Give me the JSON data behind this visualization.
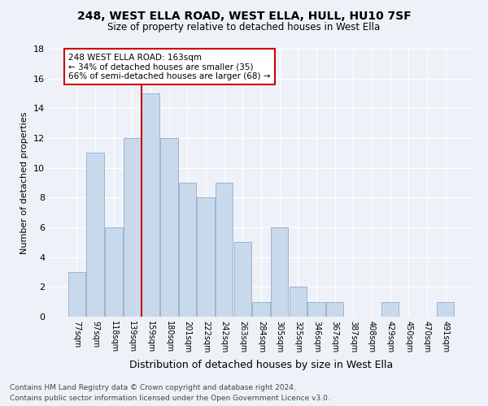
{
  "title": "248, WEST ELLA ROAD, WEST ELLA, HULL, HU10 7SF",
  "subtitle": "Size of property relative to detached houses in West Ella",
  "xlabel": "Distribution of detached houses by size in West Ella",
  "ylabel": "Number of detached properties",
  "categories": [
    "77sqm",
    "97sqm",
    "118sqm",
    "139sqm",
    "159sqm",
    "180sqm",
    "201sqm",
    "222sqm",
    "242sqm",
    "263sqm",
    "284sqm",
    "305sqm",
    "325sqm",
    "346sqm",
    "367sqm",
    "387sqm",
    "408sqm",
    "429sqm",
    "450sqm",
    "470sqm",
    "491sqm"
  ],
  "values": [
    3,
    11,
    6,
    12,
    15,
    12,
    9,
    8,
    9,
    5,
    1,
    6,
    2,
    1,
    1,
    0,
    0,
    1,
    0,
    0,
    1
  ],
  "bar_color": "#c9d9ec",
  "bar_edge_color": "#9ab4d0",
  "highlight_index": 4,
  "highlight_line_color": "#cc0000",
  "ylim": [
    0,
    18
  ],
  "yticks": [
    0,
    2,
    4,
    6,
    8,
    10,
    12,
    14,
    16,
    18
  ],
  "annotation_title": "248 WEST ELLA ROAD: 163sqm",
  "annotation_line1": "← 34% of detached houses are smaller (35)",
  "annotation_line2": "66% of semi-detached houses are larger (68) →",
  "annotation_box_color": "#ffffff",
  "annotation_box_edge": "#cc0000",
  "footer_line1": "Contains HM Land Registry data © Crown copyright and database right 2024.",
  "footer_line2": "Contains public sector information licensed under the Open Government Licence v3.0.",
  "bg_color": "#eef2f8",
  "grid_color": "#ffffff"
}
